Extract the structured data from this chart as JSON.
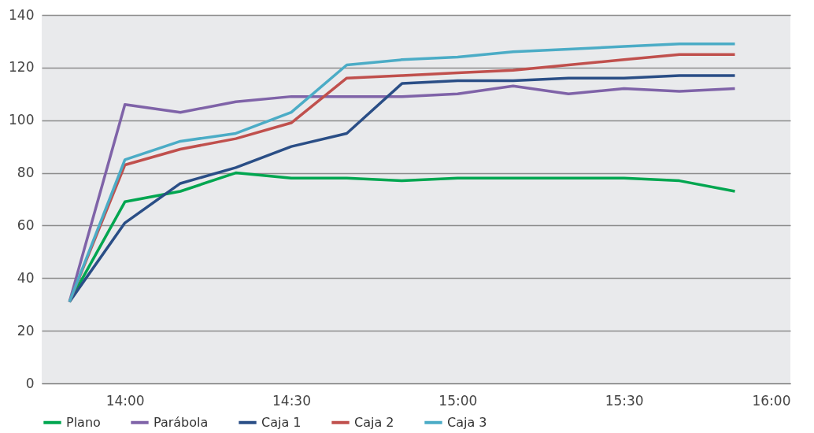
{
  "chart_data": {
    "type": "line",
    "x": [
      13.8333,
      14,
      14.1667,
      14.3333,
      14.5,
      14.6667,
      14.8333,
      15,
      15.1667,
      15.3333,
      15.5,
      15.6667,
      15.8333
    ],
    "series": [
      {
        "name": "Plano",
        "color": "#00a650",
        "values": [
          31,
          69,
          73,
          80,
          78,
          78,
          77,
          78,
          78,
          78,
          78,
          77,
          73
        ]
      },
      {
        "name": "Parábola",
        "color": "#7f63a8",
        "values": [
          31,
          106,
          103,
          107,
          109,
          109,
          109,
          110,
          113,
          110,
          112,
          111,
          112
        ]
      },
      {
        "name": "Caja 1",
        "color": "#2a4e86",
        "values": [
          31,
          61,
          76,
          82,
          90,
          95,
          114,
          115,
          115,
          116,
          116,
          117,
          117
        ]
      },
      {
        "name": "Caja 2",
        "color": "#c0504d",
        "values": [
          31,
          83,
          89,
          93,
          99,
          116,
          117,
          118,
          119,
          121,
          123,
          125,
          125
        ]
      },
      {
        "name": "Caja 3",
        "color": "#4bacc6",
        "values": [
          31,
          85,
          92,
          95,
          103,
          121,
          123,
          124,
          126,
          127,
          128,
          129,
          129
        ]
      }
    ],
    "xlim": [
      13.75,
      16
    ],
    "xticks": [
      {
        "value": 14,
        "label": "14:00"
      },
      {
        "value": 14.5,
        "label": "14:30"
      },
      {
        "value": 15,
        "label": "15:00"
      },
      {
        "value": 15.5,
        "label": "15:30"
      },
      {
        "value": 16,
        "label": "16:00"
      }
    ],
    "ylim": [
      0,
      140
    ],
    "yticks": [
      0,
      20,
      40,
      60,
      80,
      100,
      120,
      140
    ],
    "grid": "y",
    "legend": "bottom",
    "line_style": "solid",
    "marker": "none"
  }
}
